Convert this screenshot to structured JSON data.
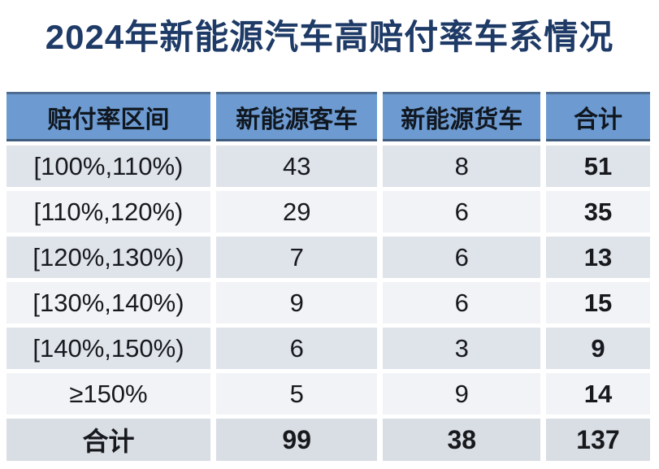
{
  "title": "2024年新能源汽车高赔付率车系情况",
  "table": {
    "headers": {
      "range": "赔付率区间",
      "bus": "新能源客车",
      "truck": "新能源货车",
      "total": "合计"
    },
    "rows": [
      {
        "range": "[100%,110%)",
        "bus": "43",
        "truck": "8",
        "total": "51"
      },
      {
        "range": "[110%,120%)",
        "bus": "29",
        "truck": "6",
        "total": "35"
      },
      {
        "range": "[120%,130%)",
        "bus": "7",
        "truck": "6",
        "total": "13"
      },
      {
        "range": "[130%,140%)",
        "bus": "9",
        "truck": "6",
        "total": "15"
      },
      {
        "range": "[140%,150%)",
        "bus": "6",
        "truck": "3",
        "total": "9"
      },
      {
        "range": "≥150%",
        "bus": "5",
        "truck": "9",
        "total": "14"
      }
    ],
    "footer": {
      "range": "合计",
      "bus": "99",
      "truck": "38",
      "total": "137"
    }
  },
  "chart_data": {
    "type": "table",
    "title": "2024年新能源汽车高赔付率车系情况",
    "columns": [
      "赔付率区间",
      "新能源客车",
      "新能源货车",
      "合计"
    ],
    "rows": [
      [
        "[100%,110%)",
        43,
        8,
        51
      ],
      [
        "[110%,120%)",
        29,
        6,
        35
      ],
      [
        "[120%,130%)",
        7,
        6,
        13
      ],
      [
        "[130%,140%)",
        9,
        6,
        15
      ],
      [
        "[140%,150%)",
        6,
        3,
        9
      ],
      [
        "≥150%",
        5,
        9,
        14
      ],
      [
        "合计",
        99,
        38,
        137
      ]
    ]
  },
  "colors": {
    "title_text": "#1e3a66",
    "header_bg": "#6d9bd1",
    "header_border": "#3f5c7e",
    "header_text": "#101720",
    "row_odd_bg": "#dfe3ea",
    "row_even_bg": "#f1f3f7",
    "footer_bg": "#d9dde4",
    "body_text": "#17191d"
  }
}
